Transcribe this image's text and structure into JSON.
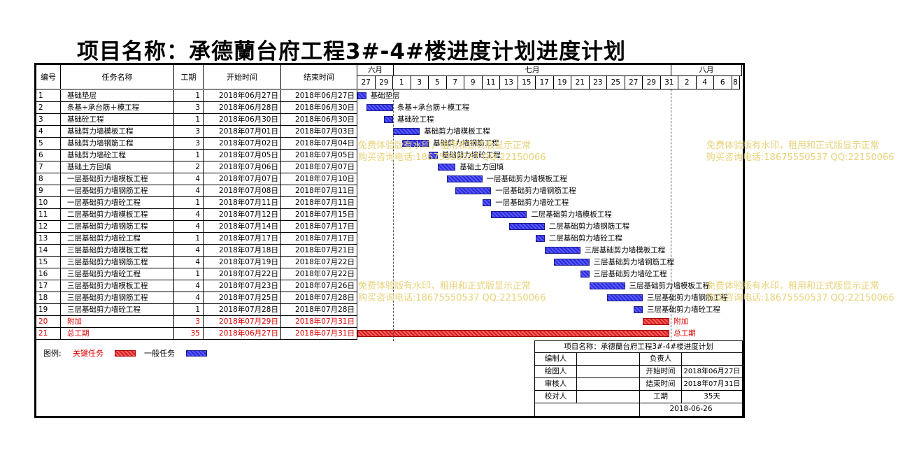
{
  "title": "项目名称：承德蘭台府工程3#-4#楼进度计划进度计划",
  "headers": {
    "id": "编号",
    "name": "任务名称",
    "duration": "工期",
    "start": "开始时间",
    "end": "结束时间"
  },
  "months": [
    {
      "label": "六月",
      "left": 511,
      "width": 52
    },
    {
      "label": "七月",
      "left": 563,
      "width": 397
    },
    {
      "label": "八月",
      "left": 960,
      "width": 101
    }
  ],
  "days": [
    "27",
    "29",
    "1",
    "3",
    "5",
    "7",
    "9",
    "11",
    "13",
    "15",
    "17",
    "19",
    "21",
    "23",
    "25",
    "27",
    "29",
    "31",
    "2",
    "4",
    "6",
    "8"
  ],
  "tasks": [
    {
      "id": "1",
      "name": "基础垫层",
      "duration": "1",
      "start": "2018年06月27日",
      "end": "2018年06月27日",
      "s": 0,
      "len": 1,
      "critical": false
    },
    {
      "id": "2",
      "name": "条基+承台筋＋模工程",
      "duration": "3",
      "start": "2018年06月28日",
      "end": "2018年06月30日",
      "s": 1,
      "len": 3,
      "critical": false
    },
    {
      "id": "3",
      "name": "基础砼工程",
      "duration": "1",
      "start": "2018年06月30日",
      "end": "2018年06月30日",
      "s": 3,
      "len": 1,
      "critical": false
    },
    {
      "id": "4",
      "name": "基础剪力墙模板工程",
      "duration": "3",
      "start": "2018年07月01日",
      "end": "2018年07月03日",
      "s": 4,
      "len": 3,
      "critical": false
    },
    {
      "id": "5",
      "name": "基础剪力墙钢筋工程",
      "duration": "3",
      "start": "2018年07月02日",
      "end": "2018年07月04日",
      "s": 5,
      "len": 3,
      "critical": false
    },
    {
      "id": "6",
      "name": "基础剪力墙砼工程",
      "duration": "1",
      "start": "2018年07月05日",
      "end": "2018年07月05日",
      "s": 8,
      "len": 1,
      "critical": false
    },
    {
      "id": "7",
      "name": "基础土方回填",
      "duration": "2",
      "start": "2018年07月06日",
      "end": "2018年07月07日",
      "s": 9,
      "len": 2,
      "critical": false
    },
    {
      "id": "8",
      "name": "一层基础剪力墙模板工程",
      "duration": "4",
      "start": "2018年07月07日",
      "end": "2018年07月10日",
      "s": 10,
      "len": 4,
      "critical": false
    },
    {
      "id": "9",
      "name": "一层基础剪力墙钢筋工程",
      "duration": "4",
      "start": "2018年07月08日",
      "end": "2018年07月11日",
      "s": 11,
      "len": 4,
      "critical": false
    },
    {
      "id": "10",
      "name": "一层基础剪力墙砼工程",
      "duration": "1",
      "start": "2018年07月11日",
      "end": "2018年07月11日",
      "s": 14,
      "len": 1,
      "critical": false
    },
    {
      "id": "11",
      "name": "二层基础剪力墙模板工程",
      "duration": "4",
      "start": "2018年07月12日",
      "end": "2018年07月15日",
      "s": 15,
      "len": 4,
      "critical": false
    },
    {
      "id": "12",
      "name": "二层基础剪力墙钢筋工程",
      "duration": "4",
      "start": "2018年07月14日",
      "end": "2018年07月17日",
      "s": 17,
      "len": 4,
      "critical": false
    },
    {
      "id": "13",
      "name": "二层基础剪力墙砼工程",
      "duration": "1",
      "start": "2018年07月17日",
      "end": "2018年07月17日",
      "s": 20,
      "len": 1,
      "critical": false
    },
    {
      "id": "14",
      "name": "三层基础剪力墙模板工程",
      "duration": "4",
      "start": "2018年07月18日",
      "end": "2018年07月21日",
      "s": 21,
      "len": 4,
      "critical": false
    },
    {
      "id": "15",
      "name": "三层基础剪力墙钢筋工程",
      "duration": "4",
      "start": "2018年07月19日",
      "end": "2018年07月22日",
      "s": 22,
      "len": 4,
      "critical": false
    },
    {
      "id": "16",
      "name": "三层基础剪力墙砼工程",
      "duration": "1",
      "start": "2018年07月22日",
      "end": "2018年07月22日",
      "s": 25,
      "len": 1,
      "critical": false
    },
    {
      "id": "17",
      "name": "三层基础剪力墙模板工程",
      "duration": "4",
      "start": "2018年07月23日",
      "end": "2018年07月26日",
      "s": 26,
      "len": 4,
      "critical": false
    },
    {
      "id": "18",
      "name": "三层基础剪力墙钢筋工程",
      "duration": "4",
      "start": "2018年07月25日",
      "end": "2018年07月28日",
      "s": 28,
      "len": 4,
      "critical": false
    },
    {
      "id": "19",
      "name": "三层基础剪力墙砼工程",
      "duration": "1",
      "start": "2018年07月28日",
      "end": "2018年07月28日",
      "s": 31,
      "len": 1,
      "critical": false
    },
    {
      "id": "20",
      "name": "附加",
      "duration": "3",
      "start": "2018年07月29日",
      "end": "2018年07月31日",
      "s": 32,
      "len": 3,
      "critical": true
    },
    {
      "id": "21",
      "name": "总工期",
      "duration": "35",
      "start": "2018年06月27日",
      "end": "2018年07月31日",
      "s": 0,
      "len": 35,
      "critical": true
    }
  ],
  "watermark": {
    "line1": "免费体验版有水印，租用和正式版显示正常",
    "line2": "购买咨询电话:18675550537 QQ:22150066"
  },
  "legend": {
    "label": "图例:",
    "critical": "关键任务",
    "normal": "一般任务",
    "critical_color": "#d42020",
    "normal_color": "#2b2bd8"
  },
  "info": {
    "title": "项目名称：承德蘭台府工程3#-4#楼进度计划",
    "editor_label": "编制人",
    "owner_label": "负责人",
    "drawer_label": "绘图人",
    "start_label": "开始时间",
    "start_value": "2018年06月27日",
    "reviewer_label": "审核人",
    "end_label": "结束时间",
    "end_value": "2018年07月31日",
    "checker_label": "校对人",
    "duration_label": "工期",
    "duration_value": "35天",
    "date": "2018-06-26"
  }
}
